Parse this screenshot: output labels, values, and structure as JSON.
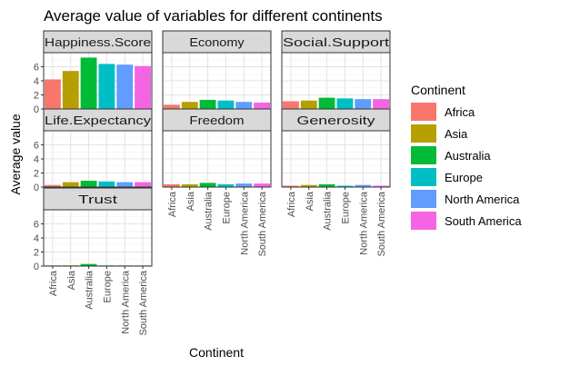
{
  "chart_data": {
    "type": "bar",
    "title": "Average value of variables for different continents",
    "xlabel": "Continent",
    "ylabel": "Average value",
    "ylim": [
      0,
      8
    ],
    "yticks": [
      0,
      2,
      4,
      6
    ],
    "grid": true,
    "legend": {
      "title": "Continent",
      "position": "right"
    },
    "categories": [
      "Africa",
      "Asia",
      "Australia",
      "Europe",
      "North America",
      "South America"
    ],
    "colors": [
      "#F8766D",
      "#B79F00",
      "#00BA38",
      "#00BFC4",
      "#619CFF",
      "#F564E3"
    ],
    "facets": [
      {
        "name": "Happiness.Score",
        "values": [
          4.2,
          5.4,
          7.3,
          6.4,
          6.3,
          6.1
        ]
      },
      {
        "name": "Economy",
        "values": [
          0.6,
          1.0,
          1.3,
          1.2,
          1.0,
          0.9
        ]
      },
      {
        "name": "Social.Support",
        "values": [
          1.1,
          1.2,
          1.6,
          1.5,
          1.4,
          1.4
        ]
      },
      {
        "name": "Life.Expectancy",
        "values": [
          0.3,
          0.7,
          0.9,
          0.8,
          0.7,
          0.7
        ]
      },
      {
        "name": "Freedom",
        "values": [
          0.4,
          0.4,
          0.6,
          0.4,
          0.5,
          0.5
        ]
      },
      {
        "name": "Generosity",
        "values": [
          0.2,
          0.3,
          0.4,
          0.2,
          0.3,
          0.2
        ]
      },
      {
        "name": "Trust",
        "values": [
          0.1,
          0.1,
          0.3,
          0.1,
          0.1,
          0.1
        ]
      }
    ]
  }
}
